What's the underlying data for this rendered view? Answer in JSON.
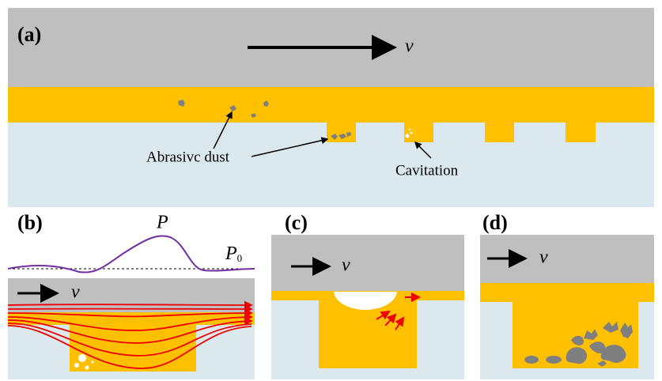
{
  "panels": [
    {
      "label": "(a)",
      "velocity": "v",
      "annotations": [
        "Abrasivc dust",
        "Cavitation"
      ]
    },
    {
      "label": "(b)",
      "pressure": "P",
      "ambient_pressure": {
        "symbol": "P",
        "subscript": "0"
      },
      "velocity": "v"
    },
    {
      "label": "(c)",
      "velocity": "v"
    },
    {
      "label": "(d)",
      "velocity": "v"
    }
  ]
}
